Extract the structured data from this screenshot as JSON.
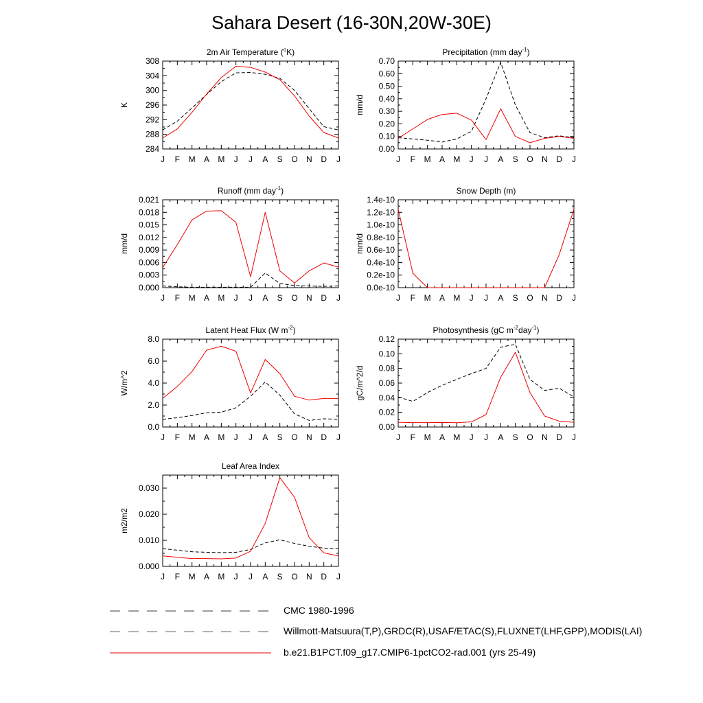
{
  "figure": {
    "title": "Sahara Desert (16-30N,20W-30E)"
  },
  "month_labels": [
    "J",
    "F",
    "M",
    "A",
    "M",
    "J",
    "J",
    "A",
    "S",
    "O",
    "N",
    "D",
    "J"
  ],
  "legend": [
    {
      "label": "CMC 1980-1996",
      "color": "#000000",
      "dash": "long"
    },
    {
      "label": "Willmott-Matsuura(T,P),GRDC(R),USAF/ETAC(S),FLUXNET(LHF,GPP),MODIS(LAI)",
      "color": "#333333",
      "dash": "long"
    },
    {
      "label": "b.e21.B1PCT.f09_g17.CMIP6-1pctCO2-rad.001 (yrs 25-49)",
      "color": "#ee0000",
      "dash": "solid"
    }
  ],
  "chart_data": [
    {
      "type": "line",
      "title": "2m Air Temperature (",
      "title_super": "o",
      "title_end": "K)",
      "ylabel": "K",
      "ylim": [
        284,
        308
      ],
      "yticks": [
        "284",
        "288",
        "292",
        "296",
        "300",
        "304",
        "308"
      ],
      "ytick_values": [
        284,
        288,
        292,
        296,
        300,
        304,
        308
      ],
      "series": [
        {
          "role": "obs",
          "values": [
            289.2,
            291.6,
            295.2,
            298.9,
            302.4,
            304.8,
            304.9,
            304.4,
            303.3,
            300.0,
            295.0,
            290.1,
            289.2
          ]
        },
        {
          "role": "model",
          "values": [
            287.0,
            289.5,
            294.0,
            299.0,
            303.5,
            306.6,
            306.3,
            305.0,
            302.9,
            298.5,
            293.0,
            288.5,
            287.0
          ]
        }
      ]
    },
    {
      "type": "line",
      "title": "Precipitation (mm day",
      "title_super": "-1",
      "title_end": ")",
      "ylabel": "mm/d",
      "ylim": [
        0,
        0.7
      ],
      "yticks": [
        "0.00",
        "0.10",
        "0.20",
        "0.30",
        "0.40",
        "0.50",
        "0.60",
        "0.70"
      ],
      "ytick_values": [
        0,
        0.1,
        0.2,
        0.3,
        0.4,
        0.5,
        0.6,
        0.7
      ],
      "series": [
        {
          "role": "obs",
          "values": [
            0.09,
            0.08,
            0.07,
            0.055,
            0.08,
            0.14,
            0.4,
            0.69,
            0.35,
            0.13,
            0.09,
            0.105,
            0.09
          ]
        },
        {
          "role": "model",
          "values": [
            0.085,
            0.16,
            0.235,
            0.275,
            0.285,
            0.23,
            0.075,
            0.32,
            0.1,
            0.05,
            0.085,
            0.1,
            0.085
          ]
        }
      ]
    },
    {
      "type": "line",
      "title": "Runoff (mm day",
      "title_super": "-1",
      "title_end": ")",
      "ylabel": "mm/d",
      "ylim": [
        0,
        0.021
      ],
      "yticks": [
        "0.000",
        "0.003",
        "0.006",
        "0.009",
        "0.012",
        "0.015",
        "0.018",
        "0.021"
      ],
      "ytick_values": [
        0,
        0.003,
        0.006,
        0.009,
        0.012,
        0.015,
        0.018,
        0.021
      ],
      "series": [
        {
          "role": "obs",
          "values": [
            0.0004,
            0.0002,
            0.0001,
            0.0001,
            0.0001,
            0.0001,
            0.0001,
            0.0035,
            0.001,
            0.0005,
            0.0004,
            0.0003,
            0.0004
          ]
        },
        {
          "role": "model",
          "values": [
            0.0048,
            0.0103,
            0.0162,
            0.0183,
            0.0184,
            0.0156,
            0.0026,
            0.018,
            0.004,
            0.0011,
            0.004,
            0.0059,
            0.0049
          ]
        }
      ]
    },
    {
      "type": "line",
      "title": "Snow Depth (m)",
      "title_super": "",
      "title_end": "",
      "ylabel": "mm/d",
      "ylim": [
        0,
        1.4e-10
      ],
      "yticks": [
        "0.0e-10",
        "0.2e-10",
        "0.4e-10",
        "0.6e-10",
        "0.8e-10",
        "1.0e-10",
        "1.2e-10",
        "1.4e-10"
      ],
      "ytick_values": [
        0,
        2e-11,
        4e-11,
        6e-11,
        8e-11,
        1e-10,
        1.2e-10,
        1.4e-10
      ],
      "series": [
        {
          "role": "obs",
          "values": [
            0,
            0,
            0,
            0,
            0,
            0,
            0,
            0,
            0,
            0,
            0,
            0,
            0
          ]
        },
        {
          "role": "model",
          "values": [
            1.25e-10,
            2.3e-11,
            0,
            0,
            0,
            0,
            0,
            0,
            0,
            0,
            0,
            5.3e-11,
            1.25e-10
          ]
        }
      ]
    },
    {
      "type": "line",
      "title": "Latent Heat Flux (W m",
      "title_super": "-2",
      "title_end": ")",
      "ylabel": "W/m^2",
      "ylim": [
        0,
        8
      ],
      "yticks": [
        "0.0",
        "2.0",
        "4.0",
        "6.0",
        "8.0"
      ],
      "ytick_values": [
        0,
        2,
        4,
        6,
        8
      ],
      "series": [
        {
          "role": "obs",
          "values": [
            0.7,
            0.85,
            1.05,
            1.3,
            1.35,
            1.75,
            2.8,
            4.1,
            2.9,
            1.2,
            0.6,
            0.75,
            0.7
          ]
        },
        {
          "role": "model",
          "values": [
            2.6,
            3.7,
            5.05,
            7.0,
            7.35,
            6.9,
            3.1,
            6.15,
            4.85,
            2.8,
            2.45,
            2.6,
            2.6
          ]
        }
      ]
    },
    {
      "type": "line",
      "title": "Photosynthesis (gC m",
      "title_super": "-2",
      "title_mid": "day",
      "title_super2": "-1",
      "title_end": ")",
      "ylabel": "gC/m^2/d",
      "ylim": [
        0,
        0.12
      ],
      "yticks": [
        "0.00",
        "0.02",
        "0.04",
        "0.06",
        "0.08",
        "0.10",
        "0.12"
      ],
      "ytick_values": [
        0,
        0.02,
        0.04,
        0.06,
        0.08,
        0.1,
        0.12
      ],
      "series": [
        {
          "role": "obs",
          "values": [
            0.041,
            0.035,
            0.047,
            0.057,
            0.065,
            0.073,
            0.08,
            0.109,
            0.113,
            0.065,
            0.05,
            0.053,
            0.041
          ]
        },
        {
          "role": "model",
          "values": [
            0.0065,
            0.006,
            0.006,
            0.0062,
            0.0058,
            0.007,
            0.017,
            0.068,
            0.102,
            0.047,
            0.015,
            0.008,
            0.0065
          ]
        }
      ]
    },
    {
      "type": "line",
      "title": "Leaf Area Index",
      "title_super": "",
      "title_end": "",
      "ylabel": "m2/m2",
      "ylim": [
        0,
        0.035
      ],
      "yticks": [
        "0.000",
        "0.010",
        "0.020",
        "0.030"
      ],
      "ytick_values": [
        0,
        0.01,
        0.02,
        0.03
      ],
      "series": [
        {
          "role": "obs",
          "values": [
            0.0068,
            0.0062,
            0.0056,
            0.0054,
            0.0053,
            0.0054,
            0.0065,
            0.009,
            0.0102,
            0.0088,
            0.0077,
            0.007,
            0.0068
          ]
        },
        {
          "role": "model",
          "values": [
            0.004,
            0.0035,
            0.003,
            0.003,
            0.0029,
            0.0032,
            0.0058,
            0.0165,
            0.034,
            0.0265,
            0.011,
            0.0052,
            0.004
          ]
        }
      ]
    }
  ]
}
